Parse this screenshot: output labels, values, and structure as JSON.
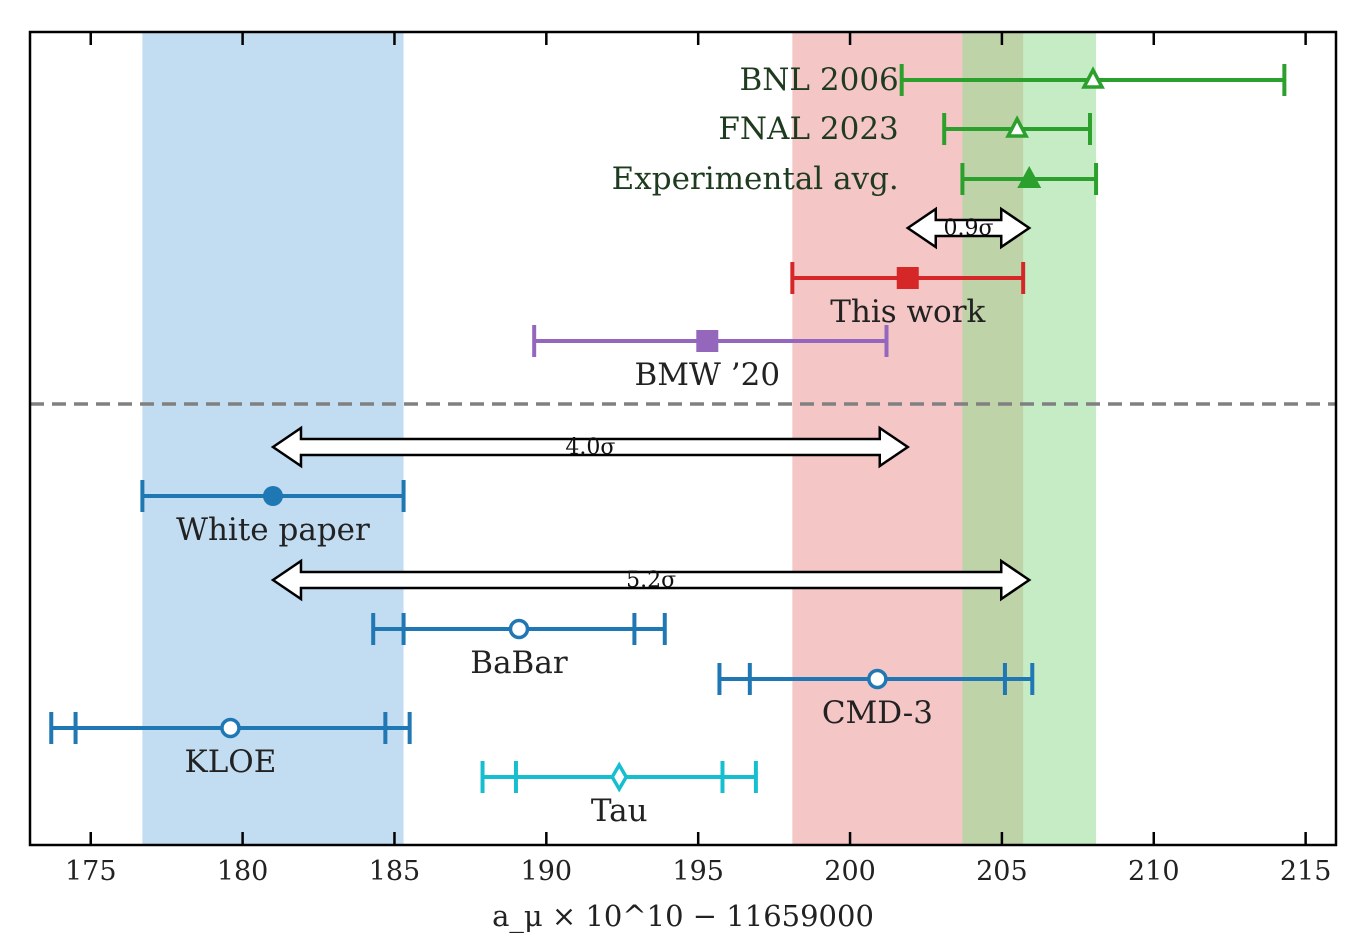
{
  "chart_data": {
    "type": "errorbar",
    "xlim": [
      173,
      216
    ],
    "xticks": [
      175,
      180,
      185,
      190,
      195,
      200,
      205,
      210,
      215
    ],
    "xtick_labels": [
      "175",
      "180",
      "185",
      "190",
      "195",
      "200",
      "205",
      "210",
      "215"
    ],
    "xlabel": "a_μ × 10^10 − 11659000",
    "bands": [
      {
        "from": 176.7,
        "to": 185.3,
        "color": "#c2ddf2"
      },
      {
        "from": 198.1,
        "to": 205.7,
        "color": "#f4c6c6"
      },
      {
        "from": 203.7,
        "to": 208.1,
        "color": "#c5ecc5"
      }
    ],
    "band_overlap": {
      "from": 203.7,
      "to": 205.7,
      "color": "#bfd3a8"
    },
    "points": [
      {
        "label": "BNL 2006",
        "value": 208.0,
        "stat": null,
        "total": [
          201.7,
          214.3
        ],
        "marker": "triangle-open",
        "color": "#2ca02c",
        "label_pos": "left",
        "label_x": 202.0
      },
      {
        "label": "FNAL 2023",
        "value": 205.5,
        "stat": null,
        "total": [
          203.1,
          207.9
        ],
        "marker": "triangle-open",
        "color": "#2ca02c",
        "label_pos": "left",
        "label_x": 202.0
      },
      {
        "label": "Experimental avg.",
        "value": 205.9,
        "stat": null,
        "total": [
          203.7,
          208.1
        ],
        "marker": "triangle-filled",
        "color": "#2ca02c",
        "label_pos": "left",
        "label_x": 202.0
      },
      {
        "label": "This work",
        "value": 201.9,
        "stat": null,
        "total": [
          198.1,
          205.7
        ],
        "marker": "square-filled",
        "color": "#d62728",
        "label_pos": "below"
      },
      {
        "label": "BMW ’20",
        "value": 195.3,
        "stat": null,
        "total": [
          189.6,
          201.2
        ],
        "marker": "square-filled",
        "color": "#9467bd",
        "label_pos": "below"
      },
      {
        "label": "White paper",
        "value": 181.0,
        "stat": null,
        "total": [
          176.7,
          185.3
        ],
        "marker": "circle-filled",
        "color": "#1f77b4",
        "label_pos": "below"
      },
      {
        "label": "BaBar",
        "value": 189.1,
        "stat": [
          185.3,
          192.9
        ],
        "total": [
          184.3,
          193.9
        ],
        "marker": "circle-open",
        "color": "#1f77b4",
        "label_pos": "below"
      },
      {
        "label": "CMD-3",
        "value": 200.9,
        "stat": [
          196.7,
          205.1
        ],
        "total": [
          195.7,
          206.0
        ],
        "marker": "circle-open",
        "color": "#1f77b4",
        "label_pos": "below"
      },
      {
        "label": "KLOE",
        "value": 179.6,
        "stat": [
          174.5,
          184.7
        ],
        "total": [
          173.7,
          185.5
        ],
        "marker": "circle-open",
        "color": "#1f77b4",
        "label_pos": "below"
      },
      {
        "label": "Tau",
        "value": 192.4,
        "stat": [
          189.0,
          195.8
        ],
        "total": [
          187.9,
          196.9
        ],
        "marker": "diamond-open",
        "color": "#17becf",
        "label_pos": "below"
      }
    ],
    "tensions": [
      {
        "label": "0.9σ",
        "from": 201.9,
        "to": 205.9
      },
      {
        "label": "4.0σ",
        "from": 181.0,
        "to": 201.9
      },
      {
        "label": "5.2σ",
        "from": 181.0,
        "to": 205.9
      }
    ],
    "separator": {
      "style": "dashed",
      "color": "#808080"
    }
  }
}
